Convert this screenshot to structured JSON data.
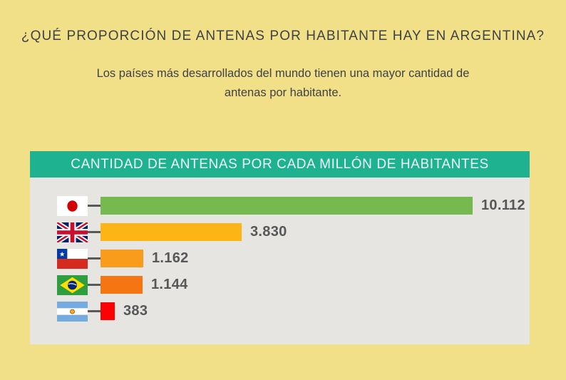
{
  "page": {
    "title": "¿QUÉ PROPORCIÓN DE ANTENAS POR HABITANTE HAY EN ARGENTINA?",
    "subtitle": "Los países más desarrollados del mundo tienen una mayor cantidad de antenas por habitante."
  },
  "panel": {
    "header": "CANTIDAD DE ANTENAS POR CADA MILLÓN DE HABITANTES"
  },
  "colors": {
    "background": "#f2e089",
    "panel_header": "#1eb291",
    "panel_header_text": "#eefaf7",
    "panel_body": "#e7e5e2",
    "title_text": "#3d4245",
    "value_text": "#565759",
    "connector": "#58595b"
  },
  "chart_data": {
    "type": "bar",
    "orientation": "horizontal",
    "title": "CANTIDAD DE ANTENAS POR CADA MILLÓN DE HABITANTES",
    "categories": [
      "Japón",
      "Reino Unido",
      "Chile",
      "Brasil",
      "Argentina"
    ],
    "values": [
      10112,
      3830,
      1162,
      1144,
      383
    ],
    "value_labels": [
      "10.112",
      "3.830",
      "1.162",
      "1.144",
      "383"
    ],
    "bar_colors": [
      "#76b94f",
      "#fcb515",
      "#f99c1b",
      "#f47512",
      "#fb0305"
    ],
    "flag_ids": [
      "jp",
      "gb",
      "cl",
      "br",
      "ar"
    ],
    "xlim": [
      0,
      10112
    ],
    "grid": false,
    "legend": false
  }
}
